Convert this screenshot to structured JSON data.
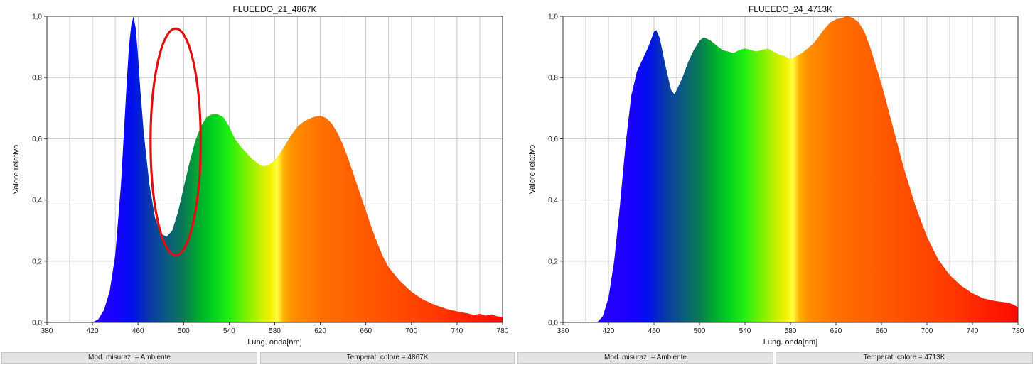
{
  "chart_data": [
    {
      "type": "area",
      "title": "FLUEEDO_21_4867K",
      "xlabel": "Lung. onda[nm]",
      "ylabel": "Valore relativo",
      "xlim": [
        380,
        780
      ],
      "ylim": [
        0,
        1.0
      ],
      "xticks": [
        "380",
        "420",
        "460",
        "500",
        "540",
        "580",
        "620",
        "660",
        "700",
        "740",
        "780"
      ],
      "yticks": [
        "0,0",
        "0,2",
        "0,4",
        "0,6",
        "0,8",
        "1,0"
      ],
      "grid": true,
      "fill": "spectral-gradient",
      "annotation": {
        "shape": "ellipse",
        "color": "#e01010",
        "center": [
          493,
          0.59
        ],
        "radii": [
          22,
          0.37
        ]
      },
      "series": [
        {
          "x": [
            420,
            425,
            430,
            435,
            440,
            445,
            450,
            452,
            454,
            456,
            458,
            460,
            462,
            465,
            470,
            475,
            480,
            485,
            490,
            495,
            500,
            505,
            510,
            515,
            520,
            525,
            530,
            535,
            540,
            545,
            550,
            555,
            560,
            565,
            570,
            575,
            580,
            585,
            590,
            595,
            600,
            605,
            610,
            615,
            620,
            625,
            630,
            635,
            640,
            645,
            650,
            655,
            660,
            665,
            670,
            675,
            680,
            690,
            700,
            710,
            720,
            730,
            740,
            750,
            755,
            760,
            765,
            770,
            775,
            780
          ],
          "y": [
            0.0,
            0.01,
            0.04,
            0.1,
            0.22,
            0.45,
            0.78,
            0.9,
            0.97,
            1.0,
            0.96,
            0.87,
            0.76,
            0.62,
            0.45,
            0.34,
            0.29,
            0.28,
            0.3,
            0.36,
            0.44,
            0.52,
            0.59,
            0.64,
            0.67,
            0.68,
            0.68,
            0.67,
            0.64,
            0.6,
            0.575,
            0.555,
            0.535,
            0.52,
            0.51,
            0.515,
            0.53,
            0.555,
            0.585,
            0.615,
            0.64,
            0.655,
            0.665,
            0.672,
            0.675,
            0.668,
            0.65,
            0.62,
            0.58,
            0.53,
            0.475,
            0.42,
            0.365,
            0.31,
            0.26,
            0.215,
            0.18,
            0.135,
            0.1,
            0.075,
            0.058,
            0.045,
            0.036,
            0.029,
            0.024,
            0.028,
            0.022,
            0.026,
            0.02,
            0.018
          ]
        }
      ]
    },
    {
      "type": "area",
      "title": "FLUEEDO_24_4713K",
      "xlabel": "Lung. onda[nm]",
      "ylabel": "Valore relativo",
      "xlim": [
        380,
        780
      ],
      "ylim": [
        0,
        1.0
      ],
      "xticks": [
        "380",
        "420",
        "460",
        "500",
        "540",
        "580",
        "620",
        "660",
        "700",
        "740",
        "780"
      ],
      "yticks": [
        "0,0",
        "0,2",
        "0,4",
        "0,6",
        "0,8",
        "1,0"
      ],
      "grid": true,
      "fill": "spectral-gradient",
      "series": [
        {
          "x": [
            410,
            415,
            420,
            425,
            430,
            435,
            440,
            445,
            450,
            455,
            458,
            460,
            462,
            465,
            470,
            475,
            478,
            480,
            485,
            490,
            495,
            500,
            503,
            505,
            510,
            515,
            520,
            525,
            530,
            535,
            540,
            545,
            550,
            555,
            560,
            565,
            570,
            575,
            580,
            585,
            590,
            595,
            600,
            605,
            610,
            615,
            620,
            625,
            630,
            635,
            640,
            645,
            650,
            655,
            660,
            665,
            670,
            675,
            680,
            690,
            700,
            710,
            720,
            730,
            740,
            750,
            760,
            770,
            775,
            780
          ],
          "y": [
            0.0,
            0.02,
            0.08,
            0.2,
            0.38,
            0.58,
            0.74,
            0.82,
            0.86,
            0.9,
            0.93,
            0.95,
            0.955,
            0.93,
            0.84,
            0.76,
            0.745,
            0.76,
            0.8,
            0.85,
            0.89,
            0.92,
            0.93,
            0.93,
            0.92,
            0.905,
            0.89,
            0.885,
            0.88,
            0.89,
            0.895,
            0.89,
            0.885,
            0.89,
            0.895,
            0.885,
            0.875,
            0.87,
            0.86,
            0.87,
            0.88,
            0.895,
            0.91,
            0.935,
            0.96,
            0.98,
            0.99,
            0.995,
            1.0,
            0.995,
            0.98,
            0.95,
            0.9,
            0.84,
            0.78,
            0.71,
            0.64,
            0.57,
            0.5,
            0.38,
            0.28,
            0.205,
            0.155,
            0.12,
            0.095,
            0.078,
            0.07,
            0.065,
            0.06,
            0.05
          ]
        }
      ]
    }
  ],
  "status": {
    "left_mode": "Mod. misuraz. = Ambiente",
    "left_temp": "Temperat. colore = 4867K",
    "right_mode": "Mod. misuraz. = Ambiente",
    "right_temp": "Temperat. colore = 4713K"
  }
}
